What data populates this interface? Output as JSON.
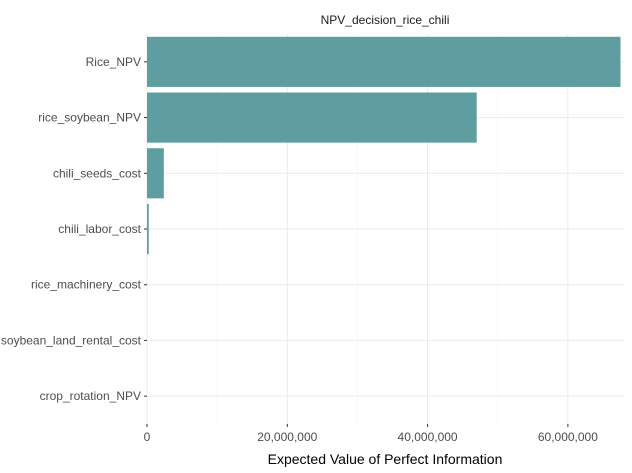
{
  "chart_data": {
    "type": "bar",
    "orientation": "horizontal",
    "title": "NPV_decision_rice_chili",
    "xlabel": "Expected Value of Perfect Information",
    "ylabel": "",
    "categories": [
      "Rice_NPV",
      "rice_soybean_NPV",
      "chili_seeds_cost",
      "chili_labor_cost",
      "rice_machinery_cost",
      "soybean_land_rental_cost",
      "crop_rotation_NPV"
    ],
    "values": [
      67500000,
      47000000,
      2400000,
      250000,
      0,
      0,
      0
    ],
    "xlim": [
      0,
      68000000
    ],
    "xticks": [
      0,
      20000000,
      40000000,
      60000000
    ],
    "xtick_labels": [
      "0",
      "20,000,000",
      "40,000,000",
      "60,000,000"
    ],
    "bar_color": "#5f9ea0",
    "grid": true
  }
}
